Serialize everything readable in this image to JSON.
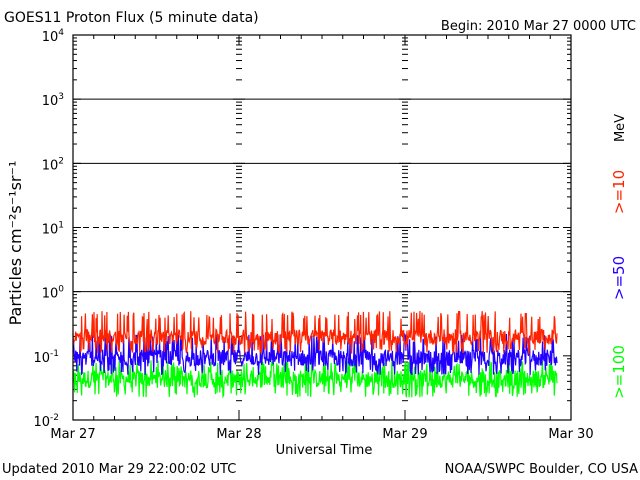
{
  "header": {
    "title": "GOES11 Proton Flux (5 minute data)",
    "begin": "Begin: 2010 Mar 27 0000 UTC"
  },
  "footer": {
    "updated": "Updated 2010 Mar 29 22:00:02 UTC",
    "source": "NOAA/SWPC Boulder, CO USA"
  },
  "chart_data": {
    "type": "line",
    "xlabel": "Universal Time",
    "ylabel": "Particles cm⁻²s⁻¹sr⁻¹",
    "y_scale": "log",
    "ylim": [
      0.01,
      10000
    ],
    "x_ticks": [
      "Mar 27",
      "Mar 28",
      "Mar 29",
      "Mar 30"
    ],
    "y_ticks": [
      {
        "base": "10",
        "exp": "4"
      },
      {
        "base": "10",
        "exp": "3"
      },
      {
        "base": "10",
        "exp": "2"
      },
      {
        "base": "10",
        "exp": "1"
      },
      {
        "base": "10",
        "exp": "0"
      },
      {
        "base": "10",
        "exp": "-1"
      },
      {
        "base": "10",
        "exp": "-2"
      }
    ],
    "unit_label": "MeV",
    "series": [
      {
        "name": ">=10",
        "color": "#ff2200",
        "typical": 0.2,
        "low": 0.12,
        "high": 0.5
      },
      {
        "name": ">=50",
        "color": "#2200ff",
        "typical": 0.095,
        "low": 0.055,
        "high": 0.22
      },
      {
        "name": ">=100",
        "color": "#00ff00",
        "typical": 0.045,
        "low": 0.025,
        "high": 0.085
      }
    ],
    "reference_lines": [
      1,
      100,
      1000,
      10000
    ],
    "dashed_lines": [
      10
    ]
  }
}
